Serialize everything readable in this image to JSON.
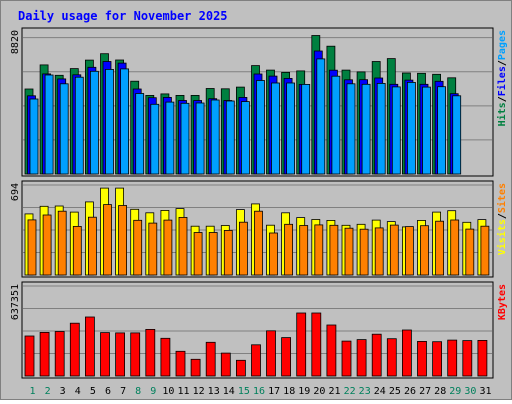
{
  "chart_data": {
    "type": "bar",
    "title": "Daily usage for November 2025",
    "categories": [
      "1",
      "2",
      "3",
      "4",
      "5",
      "6",
      "7",
      "8",
      "9",
      "10",
      "11",
      "12",
      "13",
      "14",
      "15",
      "16",
      "17",
      "18",
      "19",
      "20",
      "21",
      "22",
      "23",
      "24",
      "25",
      "26",
      "27",
      "28",
      "29",
      "30",
      "31"
    ],
    "weekend_days": [
      "1",
      "2",
      "8",
      "9",
      "15",
      "16",
      "22",
      "23",
      "29",
      "30"
    ],
    "panels": [
      {
        "name": "hits-files-pages",
        "ymax_label": "8820",
        "legend": [
          "Pages",
          "Files",
          "Hits"
        ],
        "legend_colors": [
          "#00A0FF",
          "#0000FF",
          "#008040"
        ],
        "series": [
          {
            "name": "Hits",
            "color": "#008040",
            "values": [
              null,
              null,
              null,
              null,
              null,
              null,
              null,
              null,
              null,
              null,
              null,
              null,
              null,
              null,
              null,
              null,
              null,
              null,
              null,
              null,
              null,
              null,
              null,
              null,
              null,
              null,
              null,
              null,
              null,
              null,
              null
            ]
          },
          {
            "name": "Files",
            "color": "#0000FF",
            "values": [
              null,
              null,
              null,
              null,
              null,
              null,
              null,
              null,
              null,
              null,
              null,
              null,
              null,
              null,
              null,
              null,
              null,
              null,
              null,
              null,
              null,
              null,
              null,
              null,
              null,
              null,
              null,
              null,
              null,
              null,
              null
            ]
          },
          {
            "name": "Pages",
            "color": "#00A0FF",
            "values": [
              null,
              null,
              null,
              null,
              null,
              null,
              null,
              null,
              null,
              null,
              null,
              null,
              null,
              null,
              null,
              null,
              null,
              null,
              null,
              null,
              null,
              null,
              null,
              null,
              null,
              null,
              null,
              null,
              null,
              null,
              null
            ]
          }
        ],
        "ymax": 8820
      },
      {
        "name": "visits-sites",
        "ymax_label": "694",
        "legend": [
          "Sites",
          "Visits"
        ],
        "legend_colors": [
          "#FF8000",
          "#FFFF00"
        ],
        "series": [
          {
            "name": "Visits",
            "color": "#FFFF00",
            "values": [
              null,
              null,
              null,
              null,
              null,
              null,
              null,
              null,
              null,
              null,
              null,
              null,
              null,
              null,
              null,
              null,
              null,
              null,
              null,
              null,
              null,
              null,
              null,
              null,
              null,
              null,
              null,
              null,
              null,
              null,
              null
            ]
          },
          {
            "name": "Sites",
            "color": "#FF8000",
            "values": [
              null,
              null,
              null,
              null,
              null,
              null,
              null,
              null,
              null,
              null,
              null,
              null,
              null,
              null,
              null,
              null,
              null,
              null,
              null,
              null,
              null,
              null,
              null,
              null,
              null,
              null,
              null,
              null,
              null,
              null,
              null
            ]
          }
        ],
        "ymax": 694
      },
      {
        "name": "kbytes",
        "ymax_label": "637351",
        "legend": [
          "KBytes"
        ],
        "legend_colors": [
          "#FF0000"
        ],
        "series": [
          {
            "name": "KBytes",
            "color": "#FF0000",
            "values": [
              null,
              null,
              null,
              null,
              null,
              null,
              null,
              null,
              null,
              null,
              null,
              null,
              null,
              null,
              null,
              null,
              null,
              null,
              null,
              null,
              null,
              null,
              null,
              null,
              null,
              null,
              null,
              null,
              null,
              null,
              null
            ]
          }
        ],
        "ymax": 637351
      }
    ]
  }
}
